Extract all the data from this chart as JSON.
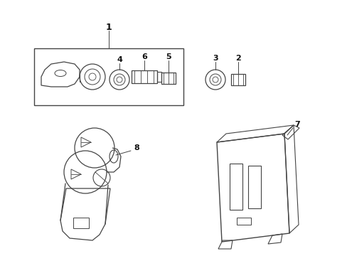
{
  "bg_color": "#ffffff",
  "line_color": "#444444",
  "label_color": "#111111",
  "fig_width": 4.89,
  "fig_height": 3.6,
  "dpi": 100
}
